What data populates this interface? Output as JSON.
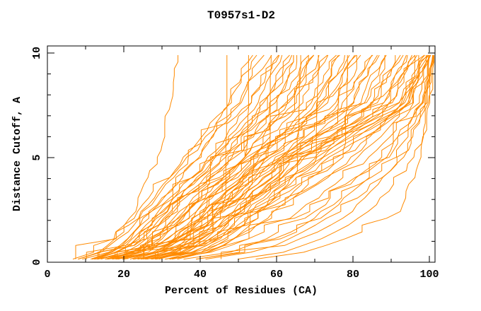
{
  "chart_data": {
    "type": "line",
    "title": "T0957s1-D2",
    "xlabel": "Percent of Residues (CA)",
    "ylabel": "Distance Cutoff, A",
    "xlim": [
      0,
      101.5
    ],
    "ylim": [
      0,
      10.35
    ],
    "x_major_ticks": [
      0,
      20,
      40,
      60,
      80,
      100
    ],
    "x_minor_ticks": [
      10,
      30,
      50,
      70,
      90
    ],
    "y_major_ticks": [
      0,
      5,
      10
    ],
    "y_minor_ticks": [
      1,
      2,
      3,
      4,
      6,
      7,
      8,
      9
    ],
    "grid": false,
    "legend": null,
    "line_color": "#ff8a00",
    "axis_color": "#000000",
    "background_color": "#ffffff",
    "series_note": "~70 overlapping model GDT curves, all same orange color; each row gives x (percent of residues) at the anchor distance cutoffs in anchor_y.",
    "anchor_y": [
      0.15,
      2.5,
      5.0,
      7.5,
      9.9
    ],
    "series": [
      [
        7,
        23,
        29,
        32,
        35
      ],
      [
        13,
        46.5,
        46.7,
        46.8,
        46.8
      ],
      [
        9,
        26,
        38,
        48,
        54
      ],
      [
        10,
        28,
        40,
        50,
        57
      ],
      [
        8,
        25,
        36,
        47,
        55
      ],
      [
        11,
        27,
        39,
        49,
        58
      ],
      [
        12,
        30,
        42,
        52,
        60
      ],
      [
        9,
        24,
        37,
        53,
        61
      ],
      [
        14,
        32,
        45,
        55,
        62
      ],
      [
        10,
        29,
        43,
        56,
        63
      ],
      [
        13,
        33,
        46,
        57,
        64
      ],
      [
        15,
        35,
        48,
        58,
        65
      ],
      [
        11,
        28,
        44,
        59,
        66
      ],
      [
        16,
        36,
        50,
        60,
        67
      ],
      [
        12,
        31,
        45,
        61,
        68
      ],
      [
        17,
        37,
        51,
        62,
        69
      ],
      [
        13,
        30,
        47,
        63,
        70
      ],
      [
        18,
        38,
        52,
        64,
        71
      ],
      [
        14,
        34,
        49,
        65,
        72
      ],
      [
        19,
        40,
        54,
        66,
        73
      ],
      [
        15,
        33,
        50,
        67,
        74
      ],
      [
        20,
        41,
        55,
        68,
        75
      ],
      [
        16,
        35,
        51,
        69,
        76
      ],
      [
        21,
        42,
        56,
        70,
        77
      ],
      [
        17,
        36,
        52,
        71,
        78
      ],
      [
        22,
        43,
        58,
        72,
        79
      ],
      [
        18,
        37,
        53,
        73,
        80
      ],
      [
        23,
        44,
        59,
        74,
        81
      ],
      [
        19,
        39,
        55,
        75,
        82
      ],
      [
        24,
        45,
        60,
        76,
        83
      ],
      [
        20,
        40,
        56,
        77,
        84
      ],
      [
        25,
        47,
        62,
        78,
        85
      ],
      [
        21,
        41,
        57,
        79,
        86
      ],
      [
        26,
        48,
        63,
        80,
        87
      ],
      [
        22,
        42,
        58,
        81,
        88
      ],
      [
        27,
        49,
        64,
        82,
        89
      ],
      [
        23,
        44,
        60,
        83,
        90
      ],
      [
        28,
        50,
        65,
        84,
        91
      ],
      [
        24,
        45,
        61,
        85,
        92
      ],
      [
        29,
        52,
        67,
        86,
        93
      ],
      [
        25,
        46,
        62,
        87,
        94
      ],
      [
        30,
        53,
        68,
        88,
        95
      ],
      [
        26,
        47,
        63,
        89,
        96
      ],
      [
        31,
        54,
        70,
        90,
        97
      ],
      [
        27,
        48,
        64,
        91,
        98
      ],
      [
        32,
        55,
        71,
        92,
        99
      ],
      [
        28,
        50,
        66,
        93,
        100
      ],
      [
        33,
        56,
        72,
        94,
        100
      ],
      [
        29,
        51,
        67,
        95,
        100
      ],
      [
        34,
        57,
        74,
        96,
        100
      ],
      [
        18,
        52,
        70,
        88,
        97
      ],
      [
        22,
        58,
        76,
        92,
        99
      ],
      [
        26,
        62,
        80,
        94,
        100
      ],
      [
        30,
        66,
        84,
        96,
        100
      ],
      [
        35,
        70,
        87,
        97,
        100.5
      ],
      [
        40,
        75,
        90,
        98,
        100.5
      ],
      [
        45,
        80,
        93,
        99,
        100.5
      ],
      [
        20,
        60,
        82,
        95,
        100
      ],
      [
        25,
        68,
        88,
        97,
        100.5
      ],
      [
        38,
        72,
        91,
        98,
        100.5
      ],
      [
        42,
        78,
        94,
        99.5,
        100.5
      ],
      [
        50,
        85,
        96,
        100,
        100.8
      ],
      [
        55,
        93,
        98,
        100.3,
        100.8
      ],
      [
        15,
        55,
        78,
        93,
        99
      ],
      [
        12,
        50,
        72,
        90,
        96
      ],
      [
        16,
        40,
        52.5,
        52.8,
        53
      ],
      [
        20,
        45,
        57.5,
        57.8,
        58
      ],
      [
        24,
        50,
        65.5,
        65.8,
        66
      ],
      [
        28,
        55,
        69.5,
        69.8,
        70
      ],
      [
        32,
        60,
        77.5,
        77.8,
        78
      ]
    ]
  }
}
